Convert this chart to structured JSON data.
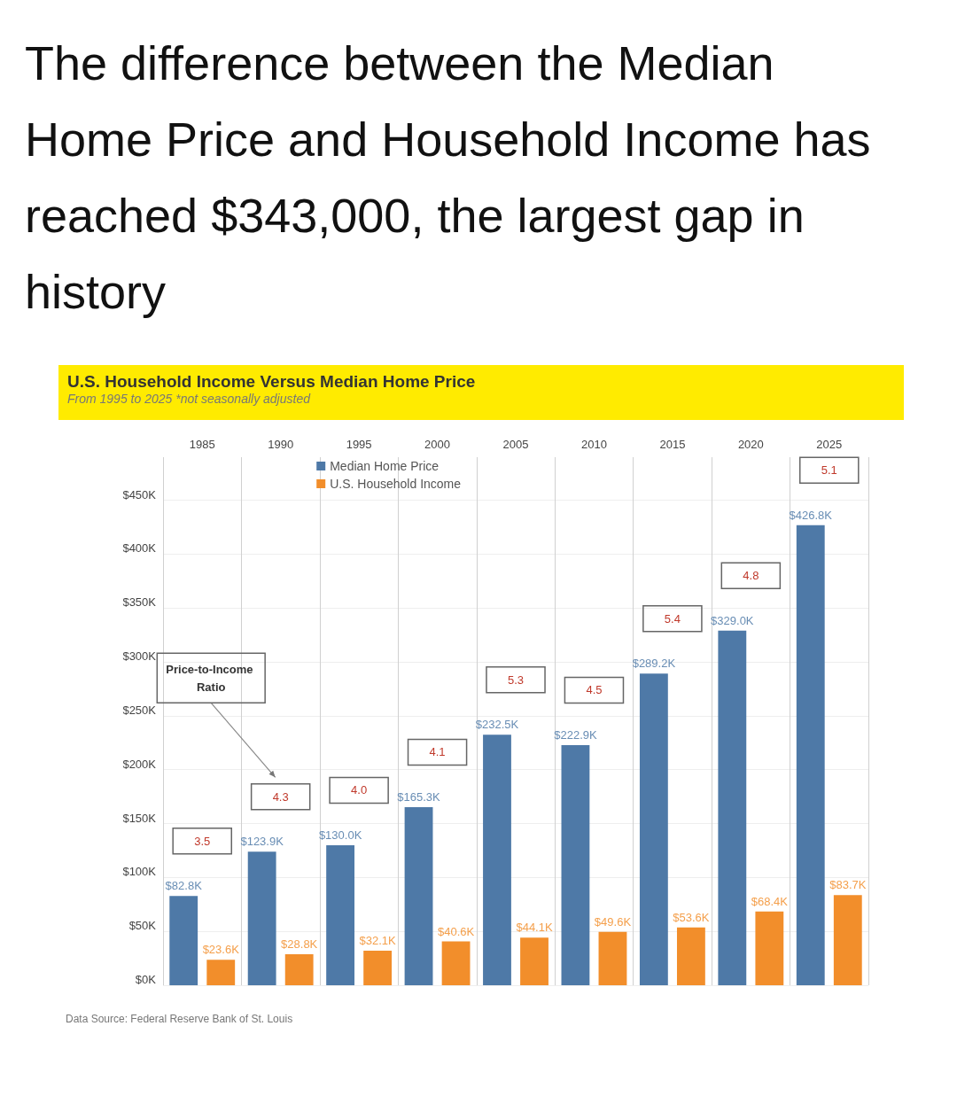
{
  "chart_data": {
    "type": "bar",
    "title": "The difference between the Median Home Price and Household Income has reached $343,000, the largest gap in history",
    "subtitle": "U.S. Household Income Versus Median Home Price",
    "categories": [
      "1985",
      "1990",
      "1995",
      "2000",
      "2005",
      "2010",
      "2015",
      "2020",
      "2025"
    ],
    "series": [
      {
        "name": "Median Home Price",
        "color": "#4e79a7",
        "values": [
          82.8,
          123.9,
          130.0,
          165.3,
          232.5,
          222.9,
          289.2,
          329.0,
          426.8
        ],
        "value_labels": [
          "$82.8K",
          "$123.9K",
          "$130.0K",
          "$165.3K",
          "$232.5K",
          "$222.9K",
          "$289.2K",
          "$329.0K",
          "$426.8K"
        ]
      },
      {
        "name": "U.S. Household Income",
        "color": "#f28e2b",
        "values": [
          23.6,
          28.8,
          32.1,
          40.6,
          44.1,
          49.6,
          53.6,
          68.4,
          83.7
        ],
        "value_labels": [
          "$23.6K",
          "$28.8K",
          "$32.1K",
          "$40.6K",
          "$44.1K",
          "$49.6K",
          "$53.6K",
          "$68.4K",
          "$83.7K"
        ]
      }
    ],
    "ylim": [
      0,
      490
    ],
    "yticks": [
      {
        "value": 0,
        "label": "$0K"
      },
      {
        "value": 50,
        "label": "$50K"
      },
      {
        "value": 100,
        "label": "$100K"
      },
      {
        "value": 150,
        "label": "$150K"
      },
      {
        "value": 200,
        "label": "$200K"
      },
      {
        "value": 250,
        "label": "$250K"
      },
      {
        "value": 300,
        "label": "$300K"
      },
      {
        "value": 350,
        "label": "$350K"
      },
      {
        "value": 400,
        "label": "$400K"
      },
      {
        "value": 450,
        "label": "$450K"
      }
    ],
    "annotations": [
      "From 1995 to 2025 *not seasonally adjusted",
      "Price-to-Income Ratio",
      "Data Source: Federal Reserve Bank of St. Louis",
      "3.5",
      "4.3",
      "4.0",
      "4.1",
      "5.3",
      "4.5",
      "5.4",
      "4.8",
      "5.1"
    ],
    "grid": true,
    "legend": "top"
  }
}
